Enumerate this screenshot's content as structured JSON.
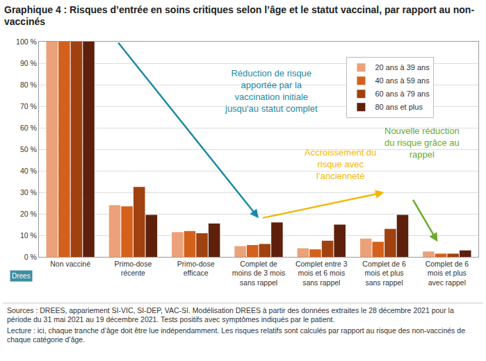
{
  "chart_data": {
    "type": "bar",
    "title": "Graphique 4 : Risques d’entrée en soins critiques selon l’âge et le statut vaccinal, par rapport au non-vaccinés",
    "categories": [
      "Non vacciné",
      "Primo-dose récente",
      "Primo-dose efficace",
      "Complet de moins de 3 mois sans rappel",
      "Complet entre 3 mois et 6 mois sans rappel",
      "Complet de 6 mois et plus sans rappel",
      "Complet de 6 mois et plus avec rappel"
    ],
    "series": [
      {
        "name": "20 ans à 39 ans",
        "color": "#eba27a",
        "values": [
          100,
          24,
          11.5,
          5,
          4,
          8.5,
          2.5
        ]
      },
      {
        "name": "40 ans à 59 ans",
        "color": "#d5601b",
        "values": [
          100,
          23.5,
          12,
          5.5,
          3.5,
          7,
          1.5
        ]
      },
      {
        "name": "60 ans à 79 ans",
        "color": "#a0420f",
        "values": [
          100,
          32.5,
          11,
          6,
          7.5,
          13,
          1.5
        ]
      },
      {
        "name": "80 ans et plus",
        "color": "#5e200b",
        "values": [
          100,
          19.5,
          15.5,
          16,
          15,
          19.5,
          3
        ]
      }
    ],
    "ylim": [
      0,
      100
    ],
    "yticks": [
      {
        "value": 0,
        "label": "0 %"
      },
      {
        "value": 10,
        "label": "10 %"
      },
      {
        "value": 20,
        "label": "20 %"
      },
      {
        "value": 30,
        "label": "30 %"
      },
      {
        "value": 40,
        "label": "40 %"
      },
      {
        "value": 50,
        "label": "50 %"
      },
      {
        "value": 60,
        "label": "60 %"
      },
      {
        "value": 70,
        "label": "70 %"
      },
      {
        "value": 80,
        "label": "80 %"
      },
      {
        "value": 90,
        "label": "90 %"
      },
      {
        "value": 100,
        "label": "100 %"
      }
    ],
    "grid": true,
    "legend": "top right",
    "annotations": [
      {
        "text": "Réduction de risque apportée par la vaccination initiale jusqu'au statut complet",
        "color": "#1b8aa6"
      },
      {
        "text": "Accroissement du risque avec l’ancienneté",
        "color": "#f2b705"
      },
      {
        "text": "Nouvelle réduction du risque grâce au rappel",
        "color": "#6aab2b"
      }
    ],
    "logo": "Drees",
    "notes": [
      "Sources : DREES, appariement SI-VIC, SI-DEP, VAC-SI. Modélisation DREES à partir des données extraites le 28 décembre 2021 pour la période du 31 mai 2021 au 19 décembre 2021. Tests positifs avec symptômes indiqués par le patient.",
      "Lecture : ici, chaque tranche d’âge doit être lue indépendamment. Les risques relatifs sont calculés par rapport au risque des non-vaccinés de chaque catégorie d’âge."
    ]
  }
}
